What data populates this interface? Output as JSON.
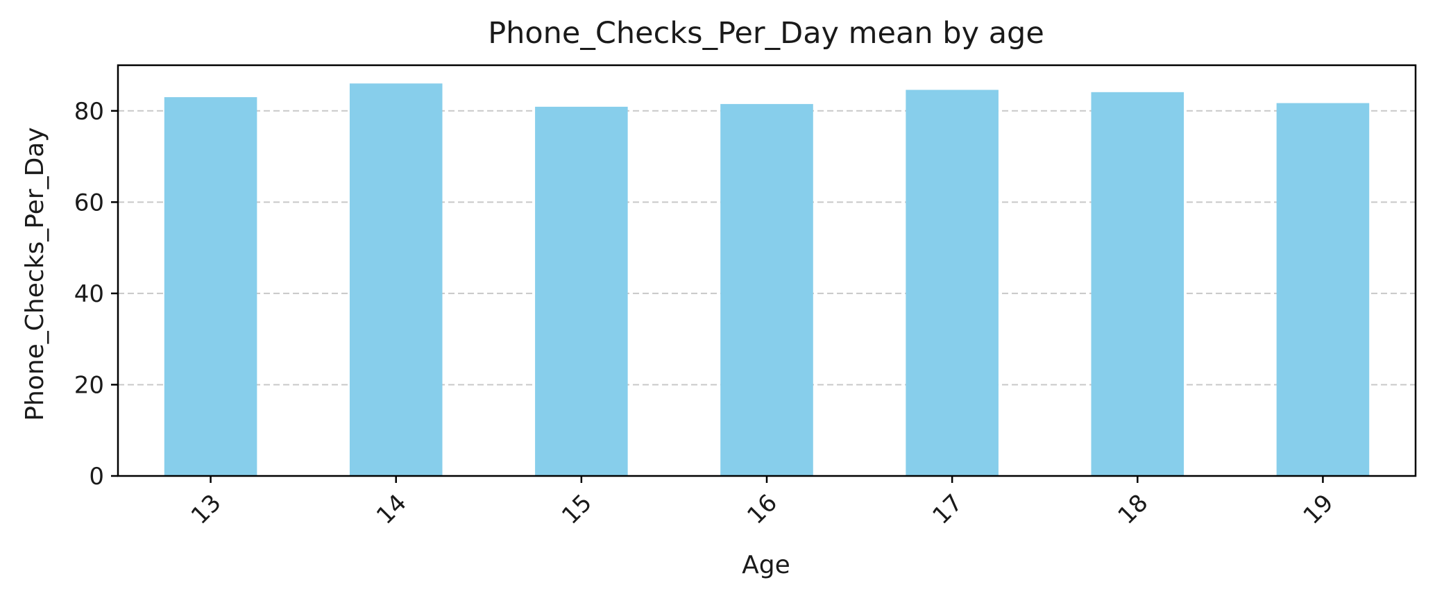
{
  "chart_data": {
    "type": "bar",
    "title": "Phone_Checks_Per_Day mean by age",
    "xlabel": "Age",
    "ylabel": "Phone_Checks_Per_Day",
    "categories": [
      "13",
      "14",
      "15",
      "16",
      "17",
      "18",
      "19"
    ],
    "values": [
      83.0,
      86.0,
      80.9,
      81.5,
      84.6,
      84.1,
      81.7
    ],
    "ylim": [
      0,
      90
    ],
    "yticks": [
      0,
      20,
      40,
      60,
      80
    ],
    "grid": {
      "y": true,
      "x": false,
      "style": "dashed"
    },
    "legend": "none",
    "bar_color": "#87ceeb",
    "grid_color": "#c8c8c8",
    "axis_color": "#000000",
    "xtick_rotation": "45 degrees"
  }
}
